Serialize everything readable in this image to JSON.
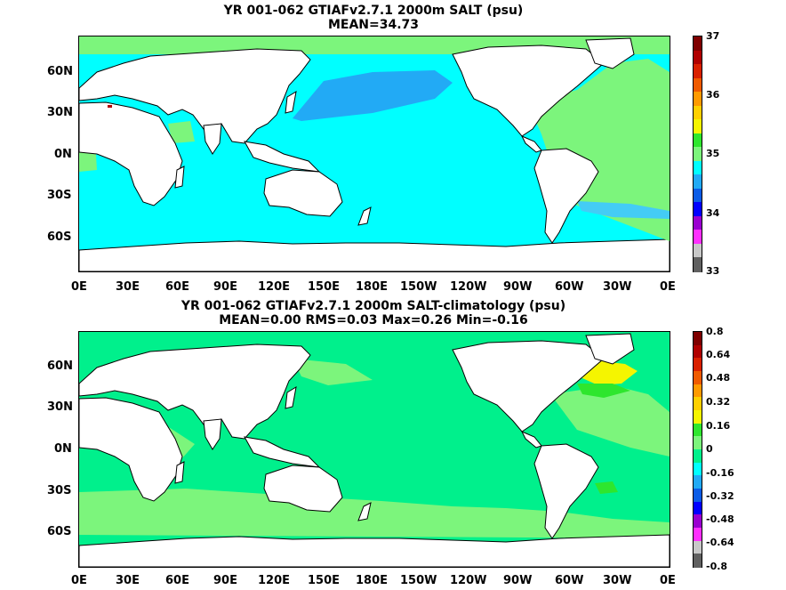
{
  "panels": [
    {
      "id": "salt",
      "title_line1": "YR 001-062 GTIAFv2.7.1 2000m SALT (psu)",
      "title_line2": "MEAN=34.73",
      "colorbar": {
        "labels": [
          "37",
          "36",
          "35",
          "34",
          "33"
        ],
        "colors": [
          "#7f0000",
          "#b00000",
          "#d92000",
          "#ef5a00",
          "#ff9a00",
          "#ffd000",
          "#f5f500",
          "#2ee62e",
          "#7cf57c",
          "#00ffff",
          "#22aaf5",
          "#0b5ce6",
          "#0000ff",
          "#9a00d0",
          "#ff30ff",
          "#c8c8c8",
          "#606060"
        ]
      }
    },
    {
      "id": "diff",
      "title_line1": "YR 001-062 GTIAFv2.7.1 2000m SALT-climatology (psu)",
      "title_line2": "MEAN=0.00   RMS=0.03   Max=0.26   Min=-0.16",
      "colorbar": {
        "labels": [
          "0.8",
          "0.64",
          "0.48",
          "0.32",
          "0.16",
          "0",
          "-0.16",
          "-0.32",
          "-0.48",
          "-0.64",
          "-0.8"
        ],
        "colors": [
          "#7f0000",
          "#b00000",
          "#d92000",
          "#ef5a00",
          "#ff9a00",
          "#ffd000",
          "#f5f500",
          "#2ee62e",
          "#7cf57c",
          "#00f08c",
          "#00ffff",
          "#22aaf5",
          "#0b5ce6",
          "#0000ff",
          "#9a00d0",
          "#ff30ff",
          "#c8c8c8",
          "#606060"
        ]
      }
    }
  ],
  "axes": {
    "x_ticks": [
      "0E",
      "30E",
      "60E",
      "90E",
      "120E",
      "150E",
      "180E",
      "150W",
      "120W",
      "90W",
      "60W",
      "30W",
      "0E"
    ],
    "y_ticks": [
      "60N",
      "30N",
      "0N",
      "30S",
      "60S"
    ]
  },
  "colors": {
    "land": "#ffffff",
    "coast": "#000000",
    "cyan": "#00ffff",
    "sky": "#22aaf5",
    "lightgreen": "#7cf57c",
    "seagreen": "#00f08c",
    "yellow": "#f5f500",
    "green": "#2ee62e"
  }
}
